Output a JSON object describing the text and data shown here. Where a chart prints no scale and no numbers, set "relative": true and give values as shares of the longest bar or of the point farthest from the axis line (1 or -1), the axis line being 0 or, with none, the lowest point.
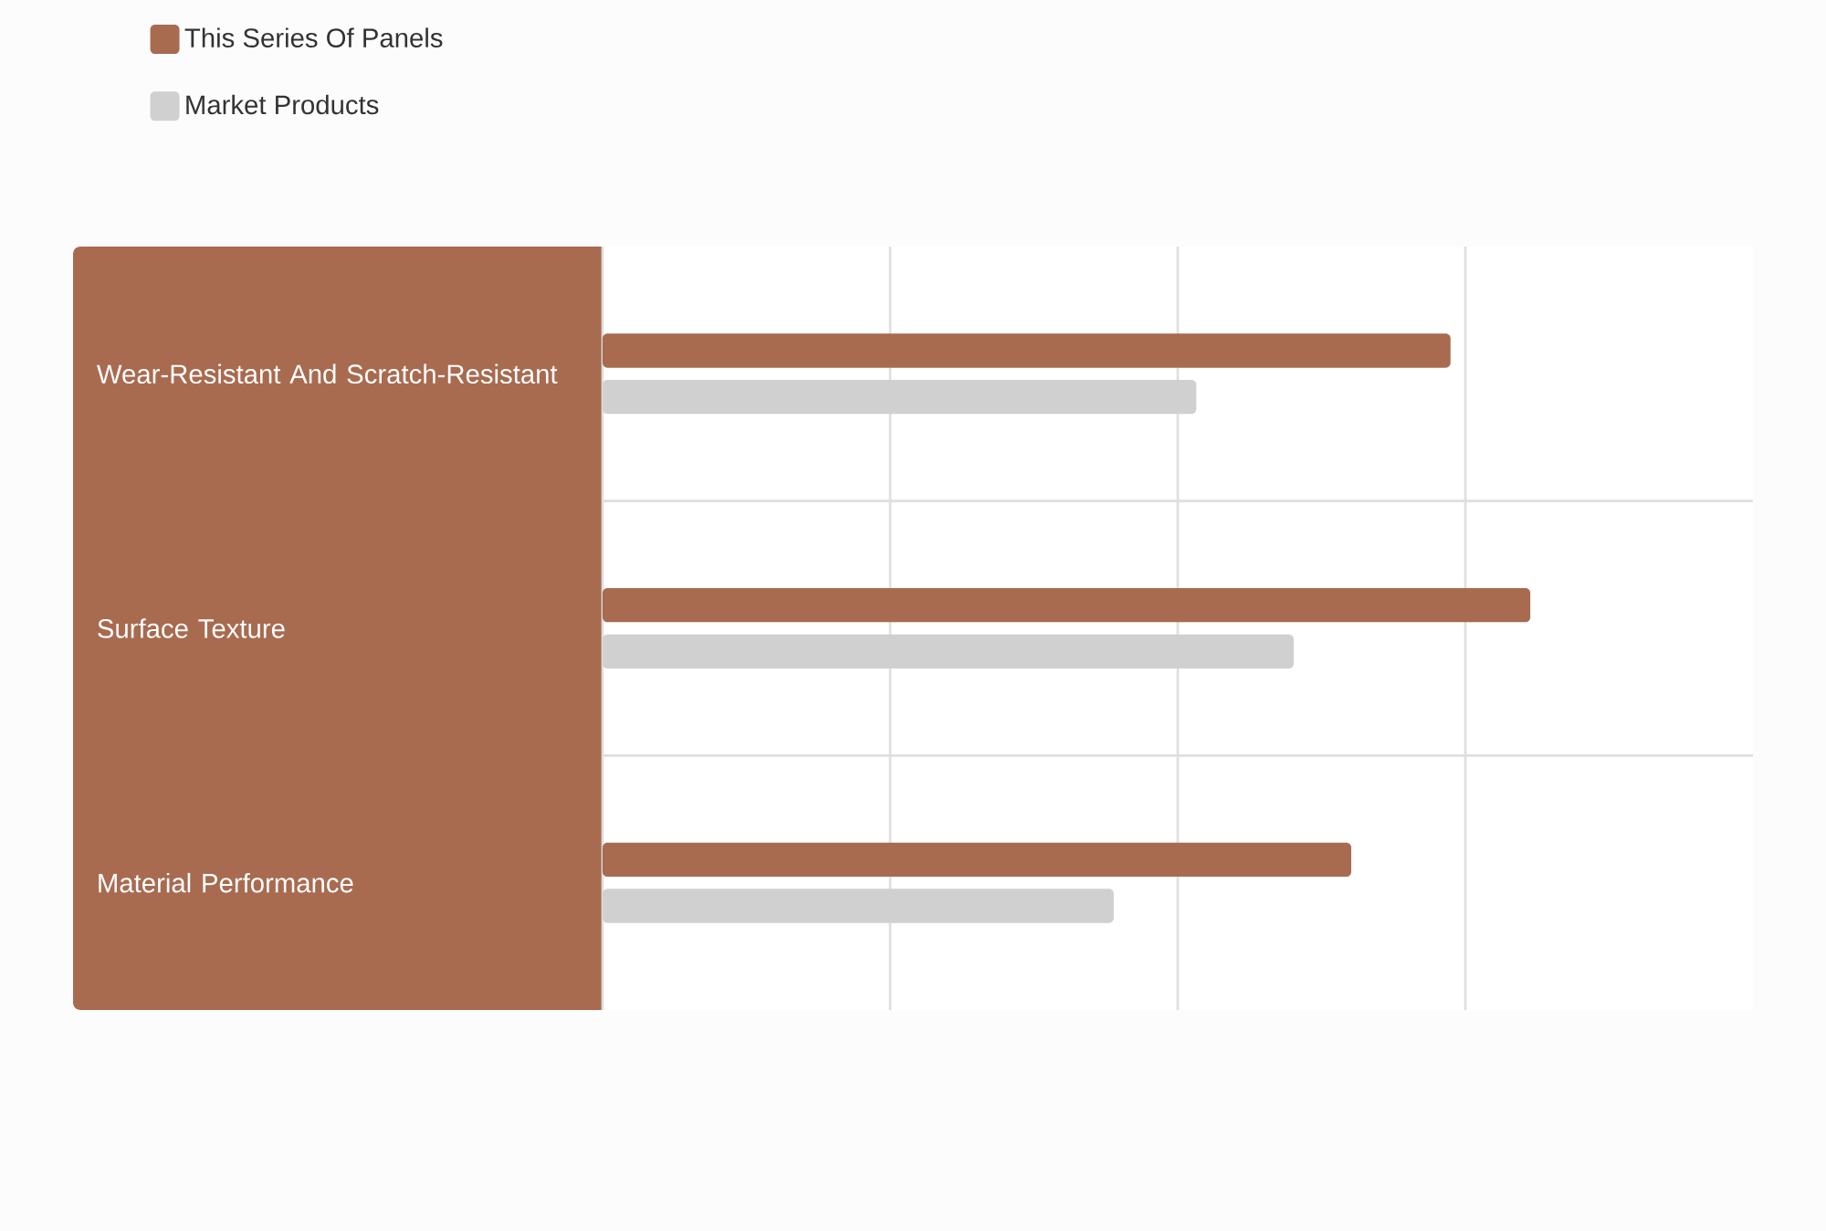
{
  "chart_data": {
    "type": "bar",
    "orientation": "horizontal",
    "relative": true,
    "categories": [
      "Wear-Resistant And Scratch-Resistant",
      "Surface Texture",
      "Material Performance"
    ],
    "series": [
      {
        "name": "This Series Of Panels",
        "color": "#a86b50",
        "values": [
          0.914,
          1,
          0.807
        ]
      },
      {
        "name": "Market Products",
        "color": "#d0d0d0",
        "values": [
          0.64,
          0.745,
          0.551
        ]
      }
    ],
    "grid": true,
    "legend": "top left"
  }
}
